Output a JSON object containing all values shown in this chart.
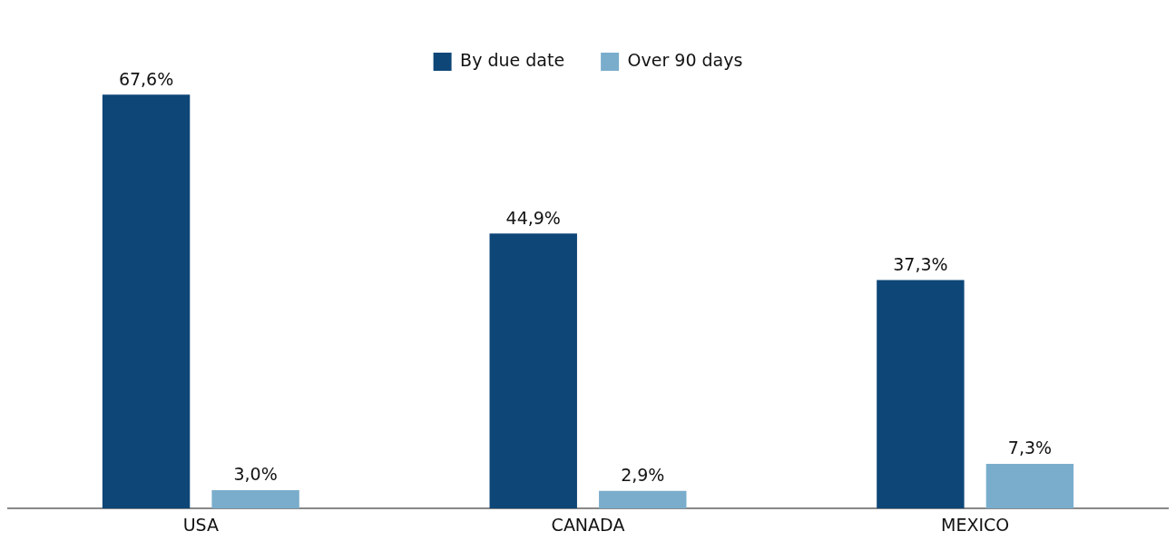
{
  "chart_data": {
    "type": "bar",
    "categories": [
      "USA",
      "CANADA",
      "MEXICO"
    ],
    "series": [
      {
        "name": "By due date",
        "color": "#0e4677",
        "values": [
          67.6,
          44.9,
          37.3
        ],
        "value_labels": [
          "67,6%",
          "44,9%",
          "37,3%"
        ]
      },
      {
        "name": "Over 90 days",
        "color": "#7aadcc",
        "values": [
          3.0,
          2.9,
          7.3
        ],
        "value_labels": [
          "3,0%",
          "2,9%",
          "7,3%"
        ]
      }
    ],
    "legend": "top",
    "grid": false,
    "tick_labels": "x"
  }
}
